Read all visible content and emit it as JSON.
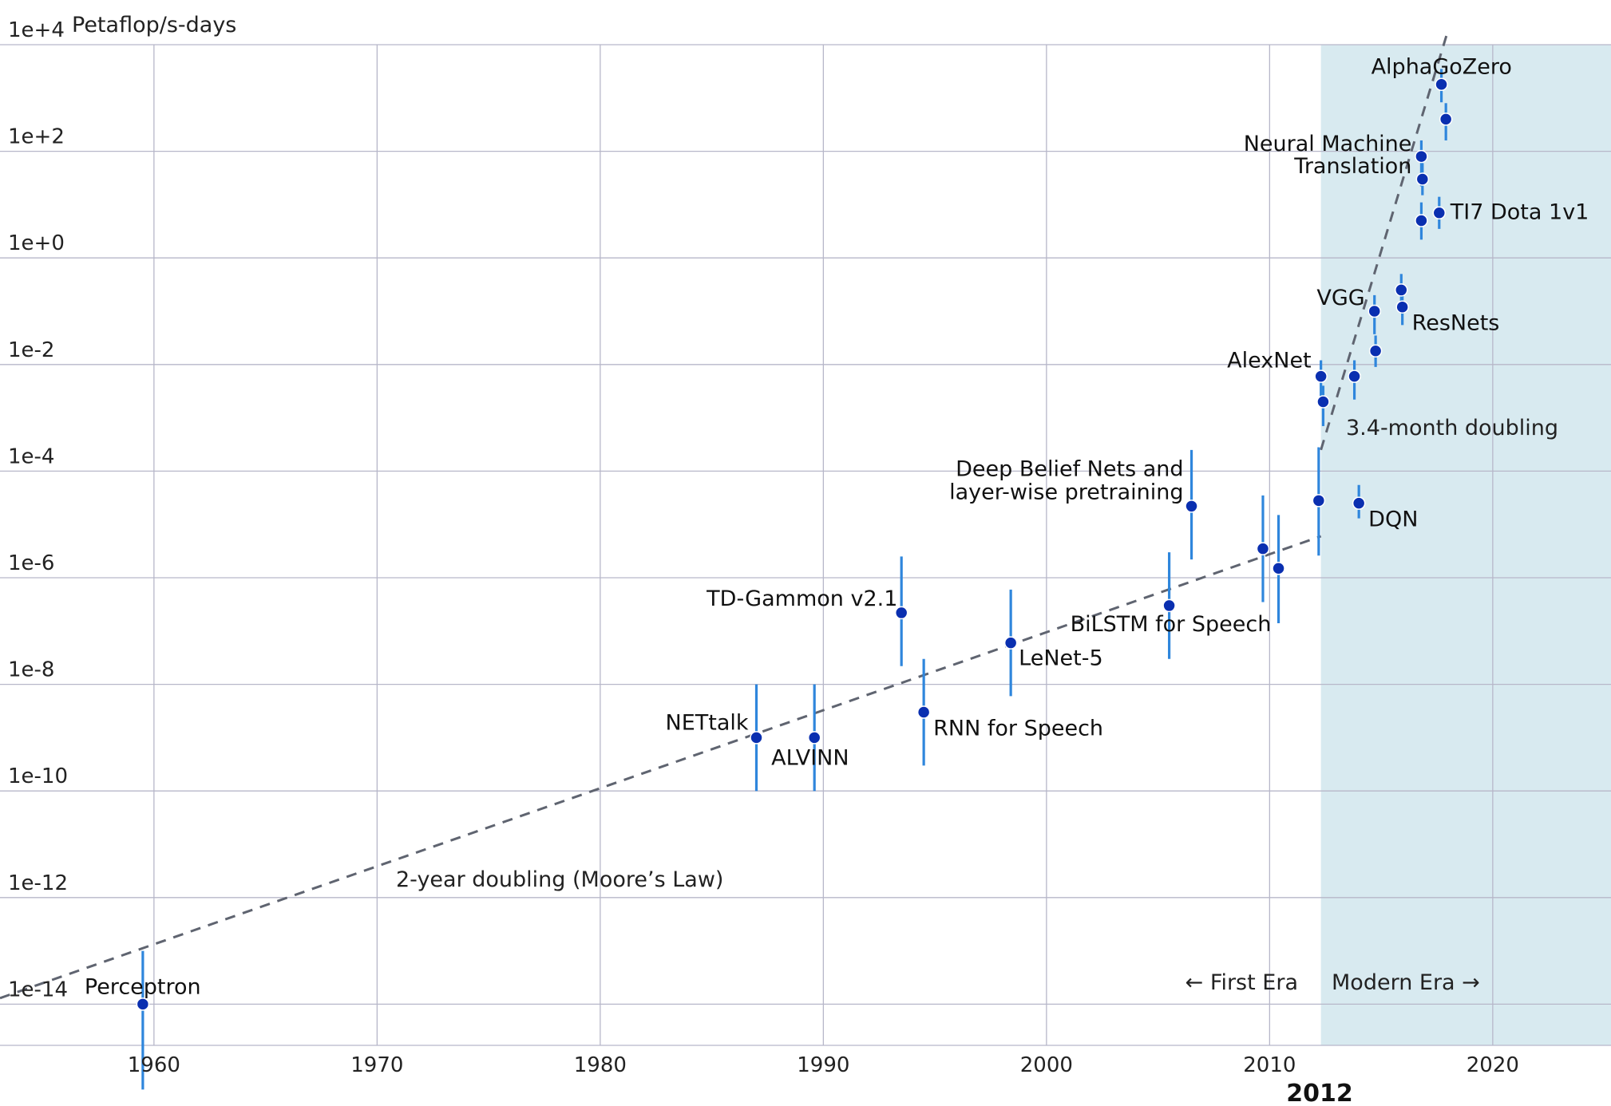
{
  "chart_data": {
    "type": "scatter",
    "title": "",
    "xlabel": "",
    "ylabel": "Petaflop/s-days",
    "y_scale": "log",
    "xlim": [
      1953.1,
      2025.3
    ],
    "ylim": [
      "1e-16",
      "1e+4"
    ],
    "x_ticks": [
      "1960",
      "1970",
      "1980",
      "1990",
      "2000",
      "2010",
      "2020"
    ],
    "highlight_x_tick": "2012",
    "y_ticks": [
      "1e+4",
      "1e+2",
      "1e+0",
      "1e-2",
      "1e-4",
      "1e-6",
      "1e-8",
      "1e-10",
      "1e-12",
      "1e-14"
    ],
    "grid": true,
    "shaded_region": {
      "x_start": 2012.3,
      "x_end": 2025.3,
      "color": "#d8eaf0"
    },
    "eras": {
      "first": "← First Era",
      "modern": "Modern Era →"
    },
    "trend_lines": [
      {
        "name": "2-year doubling (Moore’s Law)",
        "from": [
          1953.1,
          "1.3e-14"
        ],
        "to": [
          2012.3,
          "6e-6"
        ]
      },
      {
        "name": "3.4-month doubling",
        "from": [
          2012.3,
          "2.5e-4"
        ],
        "to": [
          2017.95,
          "1.6e+4"
        ]
      }
    ],
    "points": [
      {
        "label": "Perceptron",
        "x": 1959.5,
        "y": "1e-14",
        "err": [
          "2.5e-16",
          "1e-13"
        ]
      },
      {
        "label": "NETtalk",
        "x": 1987.0,
        "y": "1e-9",
        "err": [
          "1e-10",
          "1e-8"
        ]
      },
      {
        "label": "ALVINN",
        "x": 1989.6,
        "y": "1e-9",
        "err": [
          "1e-10",
          "1e-8"
        ]
      },
      {
        "label": "TD-Gammon v2.1",
        "x": 1993.5,
        "y": "2.2e-7",
        "err": [
          "2.2e-8",
          "2.5e-6"
        ]
      },
      {
        "label": "RNN for Speech",
        "x": 1994.5,
        "y": "3e-9",
        "err": [
          "3e-10",
          "3e-8"
        ]
      },
      {
        "label": "LeNet-5",
        "x": 1998.4,
        "y": "6e-8",
        "err": [
          "6e-9",
          "6e-7"
        ]
      },
      {
        "label": "BiLSTM for Speech",
        "x": 2005.5,
        "y": "3e-7",
        "err": [
          "3e-8",
          "3e-6"
        ]
      },
      {
        "label": "Deep Belief Nets and layer-wise pretraining",
        "x": 2006.5,
        "y": "2.2e-5",
        "err": [
          "2.2e-6",
          "2.5e-4"
        ]
      },
      {
        "label": "",
        "x": 2009.7,
        "y": "3.5e-6",
        "err": [
          "3.5e-7",
          "3.5e-5"
        ]
      },
      {
        "label": "",
        "x": 2010.4,
        "y": "1.5e-6",
        "err": [
          "1.4e-7",
          "1.5e-5"
        ]
      },
      {
        "label": "",
        "x": 2012.2,
        "y": "2.8e-5",
        "err": [
          "2.6e-6",
          "2.8e-4"
        ]
      },
      {
        "label": "AlexNet",
        "x": 2012.3,
        "y": "6e-3",
        "err": [
          "2.1e-3",
          "1.2e-2"
        ]
      },
      {
        "label": "",
        "x": 2012.4,
        "y": "2e-3",
        "err": [
          "7e-4",
          "4e-3"
        ]
      },
      {
        "label": "",
        "x": 2013.8,
        "y": "6e-3",
        "err": [
          "2.2e-3",
          "1.2e-2"
        ]
      },
      {
        "label": "DQN",
        "x": 2014.0,
        "y": "2.5e-5",
        "err": [
          "1.3e-5",
          "5.5e-5"
        ]
      },
      {
        "label": "VGG",
        "x": 2014.7,
        "y": "0.1",
        "err": [
          "0.037",
          "0.2"
        ]
      },
      {
        "label": "",
        "x": 2014.75,
        "y": "0.018",
        "err": [
          "0.009",
          "0.035"
        ]
      },
      {
        "label": "",
        "x": 2015.9,
        "y": "0.25",
        "err": [
          "0.13",
          "0.5"
        ]
      },
      {
        "label": "ResNets",
        "x": 2015.95,
        "y": "0.12",
        "err": [
          "0.055",
          "0.22"
        ]
      },
      {
        "label": "Neural Machine Translation",
        "x": 2016.8,
        "y": "80",
        "err": [
          "22",
          "160"
        ]
      },
      {
        "label": "",
        "x": 2016.85,
        "y": "30",
        "err": [
          "15",
          "60"
        ]
      },
      {
        "label": "",
        "x": 2016.8,
        "y": "5",
        "err": [
          "2.2",
          "11"
        ]
      },
      {
        "label": "TI7 Dota 1v1",
        "x": 2017.6,
        "y": "7",
        "err": [
          "3.5",
          "14"
        ]
      },
      {
        "label": "AlphaGoZero",
        "x": 2017.7,
        "y": "1800",
        "err": [
          "830",
          "3500"
        ]
      },
      {
        "label": "",
        "x": 2017.9,
        "y": "400",
        "err": [
          "160",
          "800"
        ]
      }
    ],
    "colors": {
      "point": "#0a2fb0",
      "error_bar": "#2f86dc",
      "trend": "#5f6470",
      "grid": "#b7b7c9"
    }
  }
}
